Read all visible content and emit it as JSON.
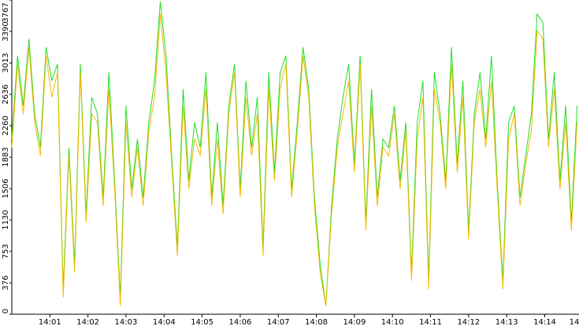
{
  "chart_data": {
    "type": "line",
    "x": [
      0,
      0.15,
      0.3,
      0.45,
      0.6,
      0.75,
      0.9,
      1.05,
      1.2,
      1.35,
      1.5,
      1.65,
      1.8,
      1.95,
      2.1,
      2.25,
      2.4,
      2.55,
      2.7,
      2.85,
      3,
      3.15,
      3.3,
      3.45,
      3.6,
      3.75,
      3.9,
      4.05,
      4.2,
      4.35,
      4.5,
      4.65,
      4.8,
      4.95,
      5.1,
      5.25,
      5.4,
      5.55,
      5.7,
      5.85,
      6,
      6.15,
      6.3,
      6.45,
      6.6,
      6.75,
      6.9,
      7.05,
      7.2,
      7.35,
      7.5,
      7.65,
      7.8,
      7.95,
      8.1,
      8.25,
      8.4,
      8.55,
      8.7,
      8.85,
      9,
      9.15,
      9.3,
      9.45,
      9.6,
      9.75,
      9.9,
      10.05,
      10.2,
      10.35,
      10.5,
      10.65,
      10.8,
      10.95,
      11.1,
      11.25,
      11.4,
      11.55,
      11.7,
      11.85,
      12,
      12.15,
      12.3,
      12.45,
      12.6,
      12.75,
      12.9,
      13.05,
      13.2,
      13.35,
      13.5,
      13.65,
      13.8,
      13.95,
      14.1,
      14.25,
      14.4,
      14.55,
      14.7,
      14.85
    ],
    "series": [
      {
        "color": "#22dd22",
        "values": [
          2100,
          3100,
          2500,
          3300,
          2400,
          2000,
          3200,
          2800,
          3000,
          300,
          2000,
          600,
          3000,
          1200,
          2600,
          2400,
          1400,
          2900,
          1600,
          200,
          2500,
          1500,
          2100,
          1400,
          2300,
          2800,
          3750,
          3100,
          1900,
          800,
          2700,
          1600,
          2300,
          2000,
          2900,
          1400,
          2300,
          1300,
          2500,
          3000,
          1500,
          2800,
          2000,
          2600,
          800,
          2900,
          1700,
          2900,
          3100,
          1500,
          2300,
          3200,
          2700,
          1400,
          600,
          100,
          1300,
          2100,
          2600,
          3000,
          1800,
          3100,
          1100,
          2700,
          1400,
          2100,
          2000,
          2500,
          1600,
          2300,
          500,
          2300,
          2800,
          400,
          2900,
          2400,
          1600,
          3200,
          1800,
          2800,
          1000,
          2400,
          2900,
          2100,
          3100,
          1600,
          400,
          2300,
          2500,
          1400,
          1900,
          2400,
          3600,
          3500,
          2100,
          2900,
          1600,
          2500,
          1100,
          2500
        ]
      },
      {
        "color": "#f5bb00",
        "values": [
          2000,
          3000,
          2400,
          3200,
          2300,
          1900,
          3100,
          2600,
          2900,
          200,
          1900,
          500,
          2900,
          1100,
          2400,
          2300,
          1300,
          2700,
          1500,
          100,
          2300,
          1400,
          2000,
          1300,
          2200,
          2600,
          3600,
          2900,
          1800,
          700,
          2500,
          1500,
          2100,
          1900,
          2700,
          1300,
          2100,
          1200,
          2400,
          2900,
          1400,
          2600,
          1900,
          2400,
          700,
          2700,
          1600,
          2700,
          3000,
          1400,
          2200,
          3100,
          2600,
          1300,
          500,
          100,
          1200,
          2000,
          2400,
          2800,
          1700,
          3000,
          1000,
          2500,
          1300,
          2000,
          1900,
          2400,
          1500,
          2200,
          400,
          2100,
          2600,
          300,
          2700,
          2300,
          1500,
          3000,
          1700,
          2600,
          900,
          2300,
          2700,
          2000,
          2800,
          1500,
          300,
          2100,
          2400,
          1300,
          1800,
          2200,
          3400,
          3300,
          2000,
          2700,
          1500,
          2300,
          1000,
          2300
        ]
      }
    ],
    "xlim": [
      0,
      14.9
    ],
    "xticks": [
      {
        "value": 1,
        "label": "14:01"
      },
      {
        "value": 2,
        "label": "14:02"
      },
      {
        "value": 3,
        "label": "14:03"
      },
      {
        "value": 4,
        "label": "14:04"
      },
      {
        "value": 5,
        "label": "14:05"
      },
      {
        "value": 6,
        "label": "14:06"
      },
      {
        "value": 7,
        "label": "14:07"
      },
      {
        "value": 8,
        "label": "14:08"
      },
      {
        "value": 9,
        "label": "14:09"
      },
      {
        "value": 10,
        "label": "14:10"
      },
      {
        "value": 11,
        "label": "14:11"
      },
      {
        "value": 12,
        "label": "14:12"
      },
      {
        "value": 13,
        "label": "14:13"
      },
      {
        "value": 14,
        "label": "14:14"
      },
      {
        "value": 15,
        "label": "14"
      }
    ],
    "ylim": [
      0,
      3767
    ],
    "yticks": [
      0,
      376,
      753,
      1130,
      1506,
      1883,
      2260,
      2636,
      3013,
      3390,
      3767
    ]
  }
}
